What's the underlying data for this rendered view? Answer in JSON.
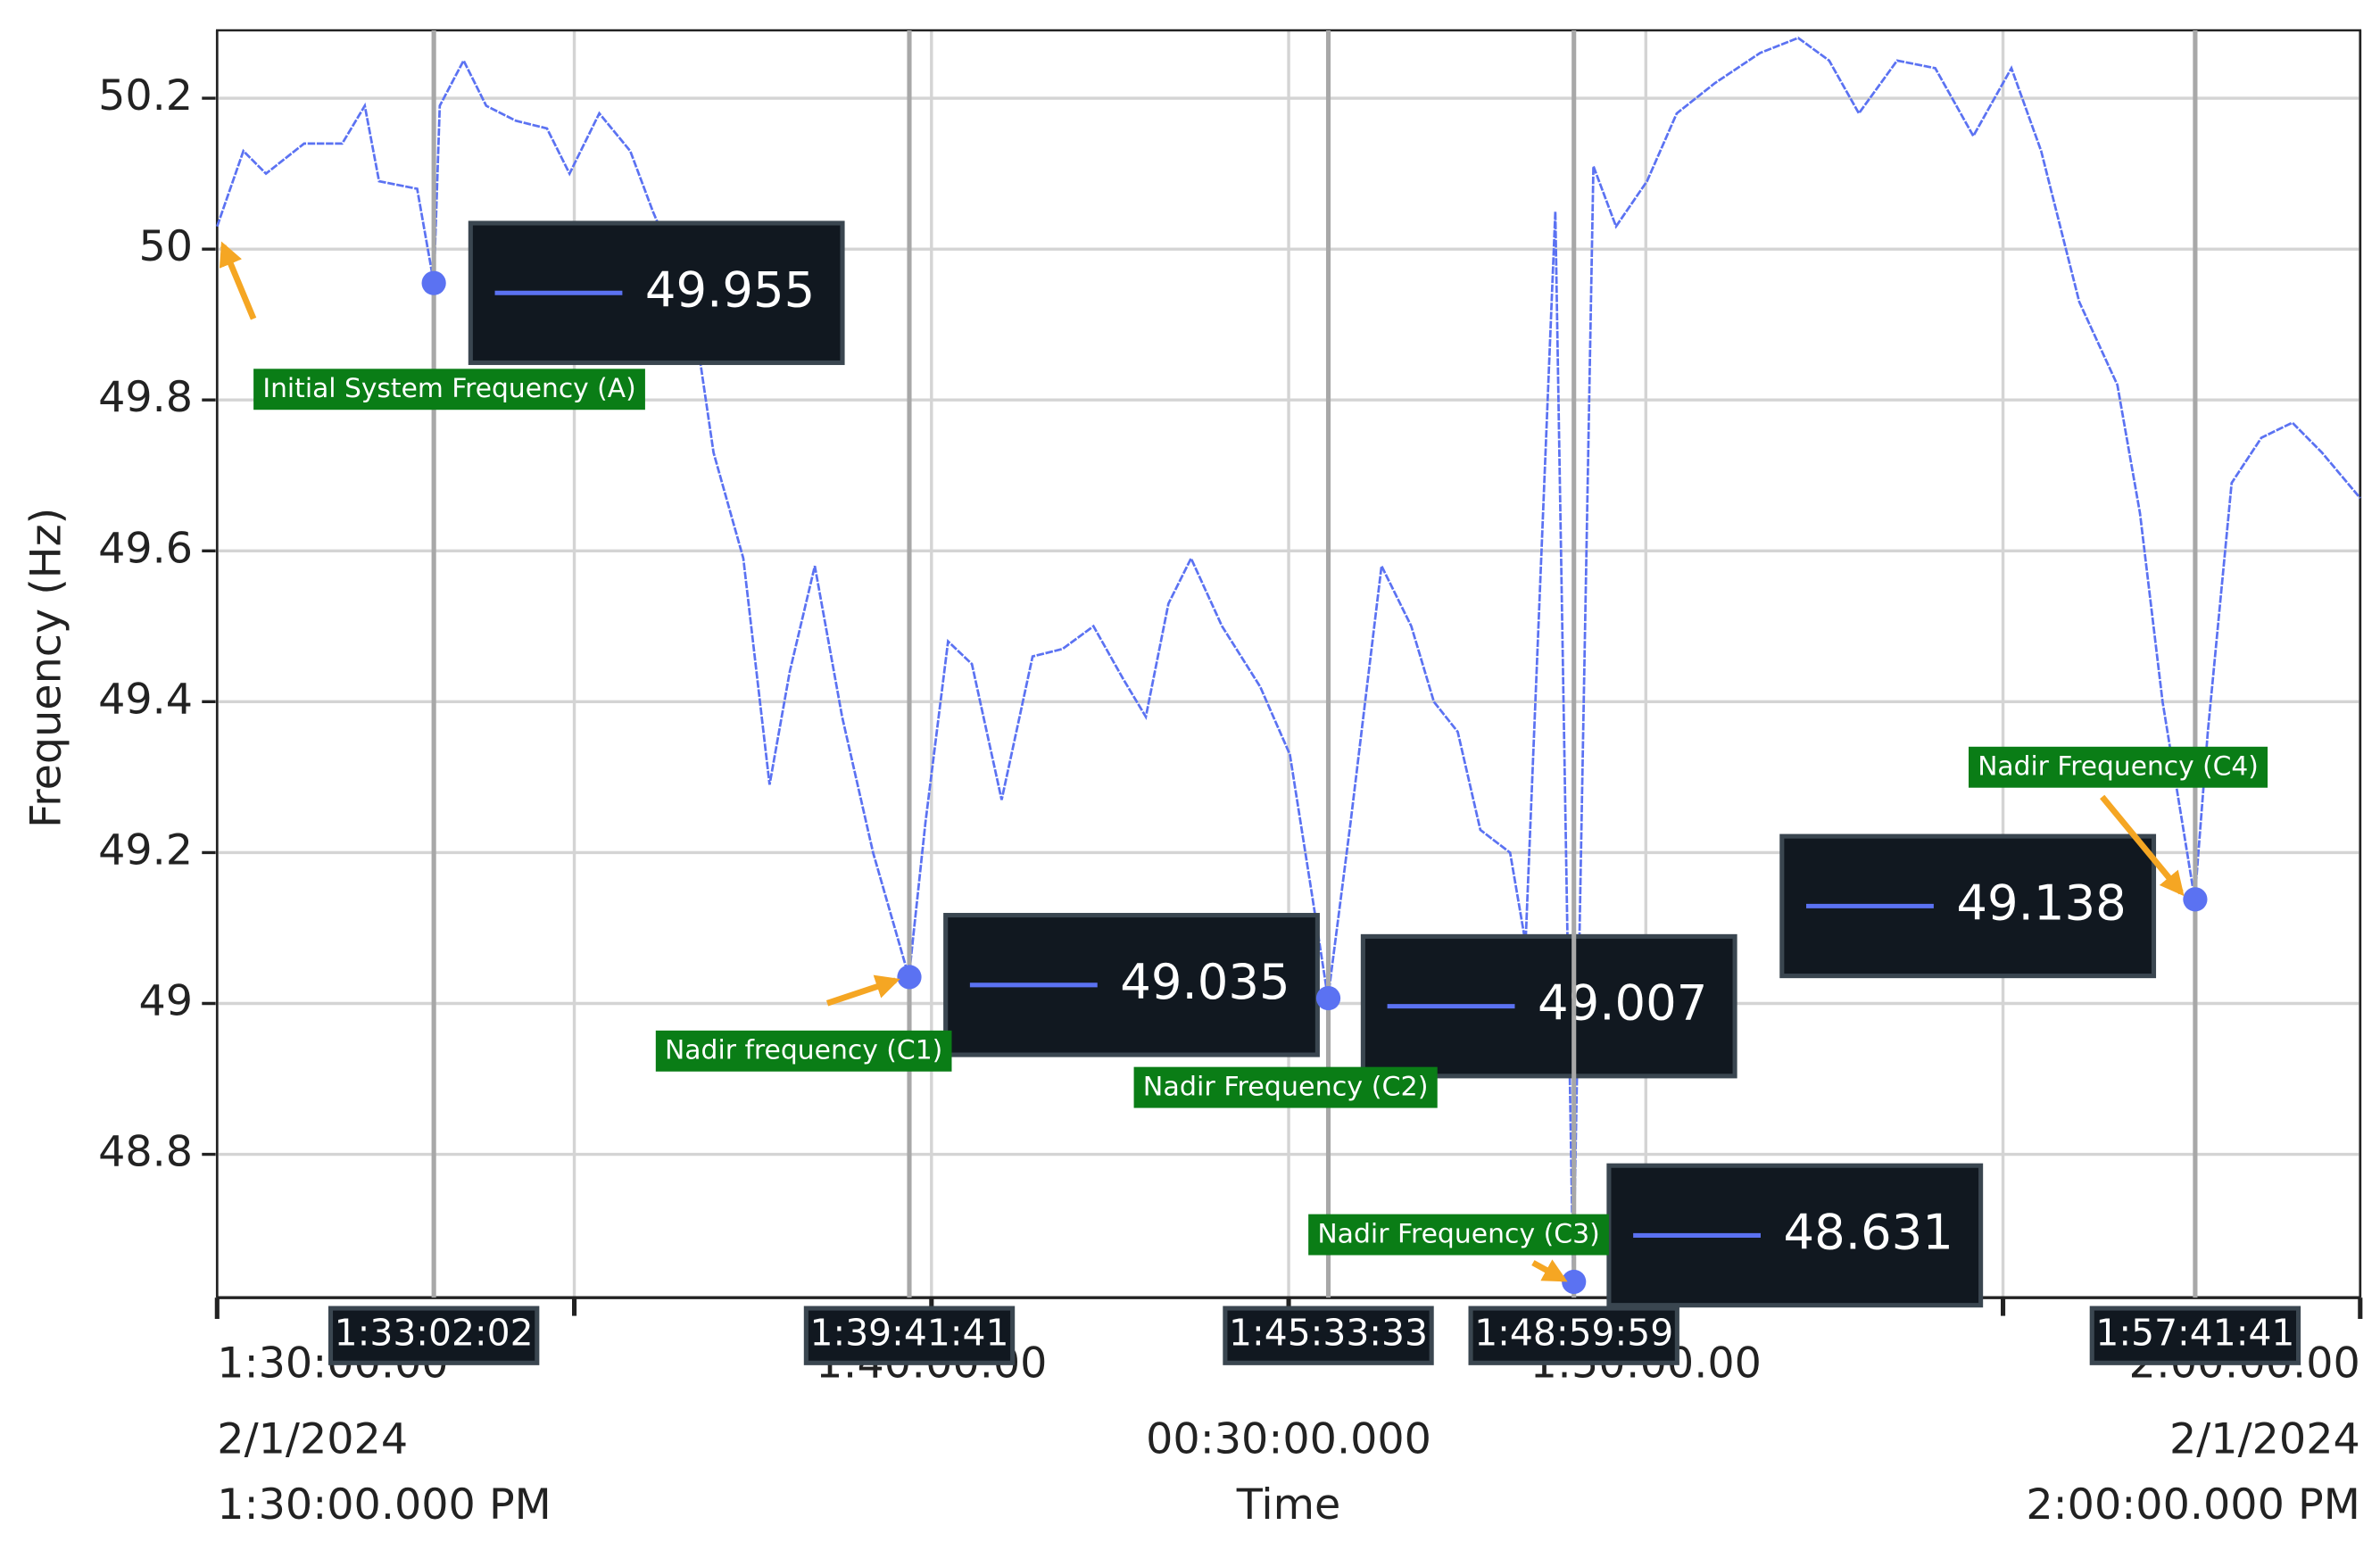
{
  "chart_data": {
    "type": "line",
    "y_label": "Frequency (Hz)",
    "x_label": "Time",
    "x_range_start": [
      "2/1/2024",
      "1:30:00.000 PM"
    ],
    "x_span": "00:30:00.000",
    "x_range_end": [
      "2/1/2024",
      "2:00:00.000 PM"
    ],
    "xlim": [
      "1:30:00",
      "2:00:00"
    ],
    "xticks": [
      {
        "value": "1:30:00",
        "label": "1:30:00.00"
      },
      {
        "value": "1:40:00",
        "label": "1:40:00.00"
      },
      {
        "value": "1:50:00",
        "label": "1:50:00.00"
      },
      {
        "value": "2:00:00",
        "label": "2:00:00.00"
      }
    ],
    "xgrid": [
      "1:35:00",
      "1:45:00",
      "1:55:00"
    ],
    "ylim": [
      48.61,
      50.29
    ],
    "yticks": [
      48.8,
      49,
      49.2,
      49.4,
      49.6,
      49.8,
      50,
      50.2
    ],
    "grid": true,
    "x": [
      "1:30:00",
      "1:30:22",
      "1:30:41",
      "1:31:13",
      "1:31:45",
      "1:32:04",
      "1:32:16",
      "1:32:48",
      "1:33:02",
      "1:33:07",
      "1:33:27",
      "1:33:46",
      "1:34:11",
      "1:34:37",
      "1:34:56",
      "1:35:21",
      "1:35:47",
      "1:36:06",
      "1:36:25",
      "1:36:44",
      "1:36:57",
      "1:37:22",
      "1:37:44",
      "1:38:01",
      "1:38:22",
      "1:38:45",
      "1:39:11",
      "1:39:41",
      "1:39:55",
      "1:40:14",
      "1:40:34",
      "1:40:59",
      "1:41:25",
      "1:41:50",
      "1:42:16",
      "1:42:41",
      "1:43:00",
      "1:43:19",
      "1:43:38",
      "1:44:04",
      "1:44:36",
      "1:45:01",
      "1:45:20",
      "1:45:33",
      "1:45:52",
      "1:46:18",
      "1:46:43",
      "1:47:02",
      "1:47:22",
      "1:47:41",
      "1:48:06",
      "1:48:19",
      "1:48:44",
      "1:48:59",
      "1:49:16",
      "1:49:35",
      "1:50:01",
      "1:50:26",
      "1:50:58",
      "1:51:36",
      "1:52:08",
      "1:52:34",
      "1:52:59",
      "1:53:31",
      "1:54:03",
      "1:54:35",
      "1:55:07",
      "1:55:32",
      "1:56:04",
      "1:56:36",
      "1:56:55",
      "1:57:14",
      "1:57:41",
      "1:57:52",
      "1:58:12",
      "1:58:37",
      "1:59:03",
      "1:59:28",
      "2:00:00"
    ],
    "series": [
      {
        "name": "Frequency",
        "color": "#5b72f2",
        "values": [
          50.03,
          50.13,
          50.1,
          50.14,
          50.14,
          50.19,
          50.09,
          50.08,
          49.955,
          50.19,
          50.25,
          50.19,
          50.17,
          50.16,
          50.1,
          50.18,
          50.13,
          50.05,
          49.98,
          49.87,
          49.73,
          49.59,
          49.29,
          49.44,
          49.58,
          49.38,
          49.2,
          49.035,
          49.24,
          49.48,
          49.45,
          49.27,
          49.46,
          49.47,
          49.5,
          49.43,
          49.38,
          49.53,
          49.59,
          49.5,
          49.42,
          49.33,
          49.14,
          49.007,
          49.24,
          49.58,
          49.5,
          49.4,
          49.36,
          49.23,
          49.2,
          49.08,
          50.05,
          48.631,
          50.11,
          50.03,
          50.09,
          50.18,
          50.22,
          50.26,
          50.28,
          50.25,
          50.18,
          50.25,
          50.24,
          50.15,
          50.24,
          50.13,
          49.93,
          49.82,
          49.65,
          49.4,
          49.138,
          49.36,
          49.69,
          49.75,
          49.77,
          49.73,
          49.67
        ]
      }
    ],
    "cursors": [
      {
        "time": {
          "value": "1:33:02.02",
          "label": "1:33:02:02"
        },
        "value": 49.955,
        "annotation": "Initial System Frequency (A)"
      },
      {
        "time": {
          "value": "1:39:41.41",
          "label": "1:39:41:41"
        },
        "value": 49.035,
        "annotation": "Nadir frequency (C1)"
      },
      {
        "time": {
          "value": "1:45:33.33",
          "label": "1:45:33:33"
        },
        "value": 49.007,
        "annotation": "Nadir Frequency (C2)"
      },
      {
        "time": {
          "value": "1:48:59.59",
          "label": "1:48:59:59"
        },
        "value": 48.631,
        "annotation": "Nadir Frequency (C3)"
      },
      {
        "time": {
          "value": "1:57:41.41",
          "label": "1:57:41:41"
        },
        "value": 49.138,
        "annotation": "Nadir Frequency (C4)"
      }
    ]
  }
}
